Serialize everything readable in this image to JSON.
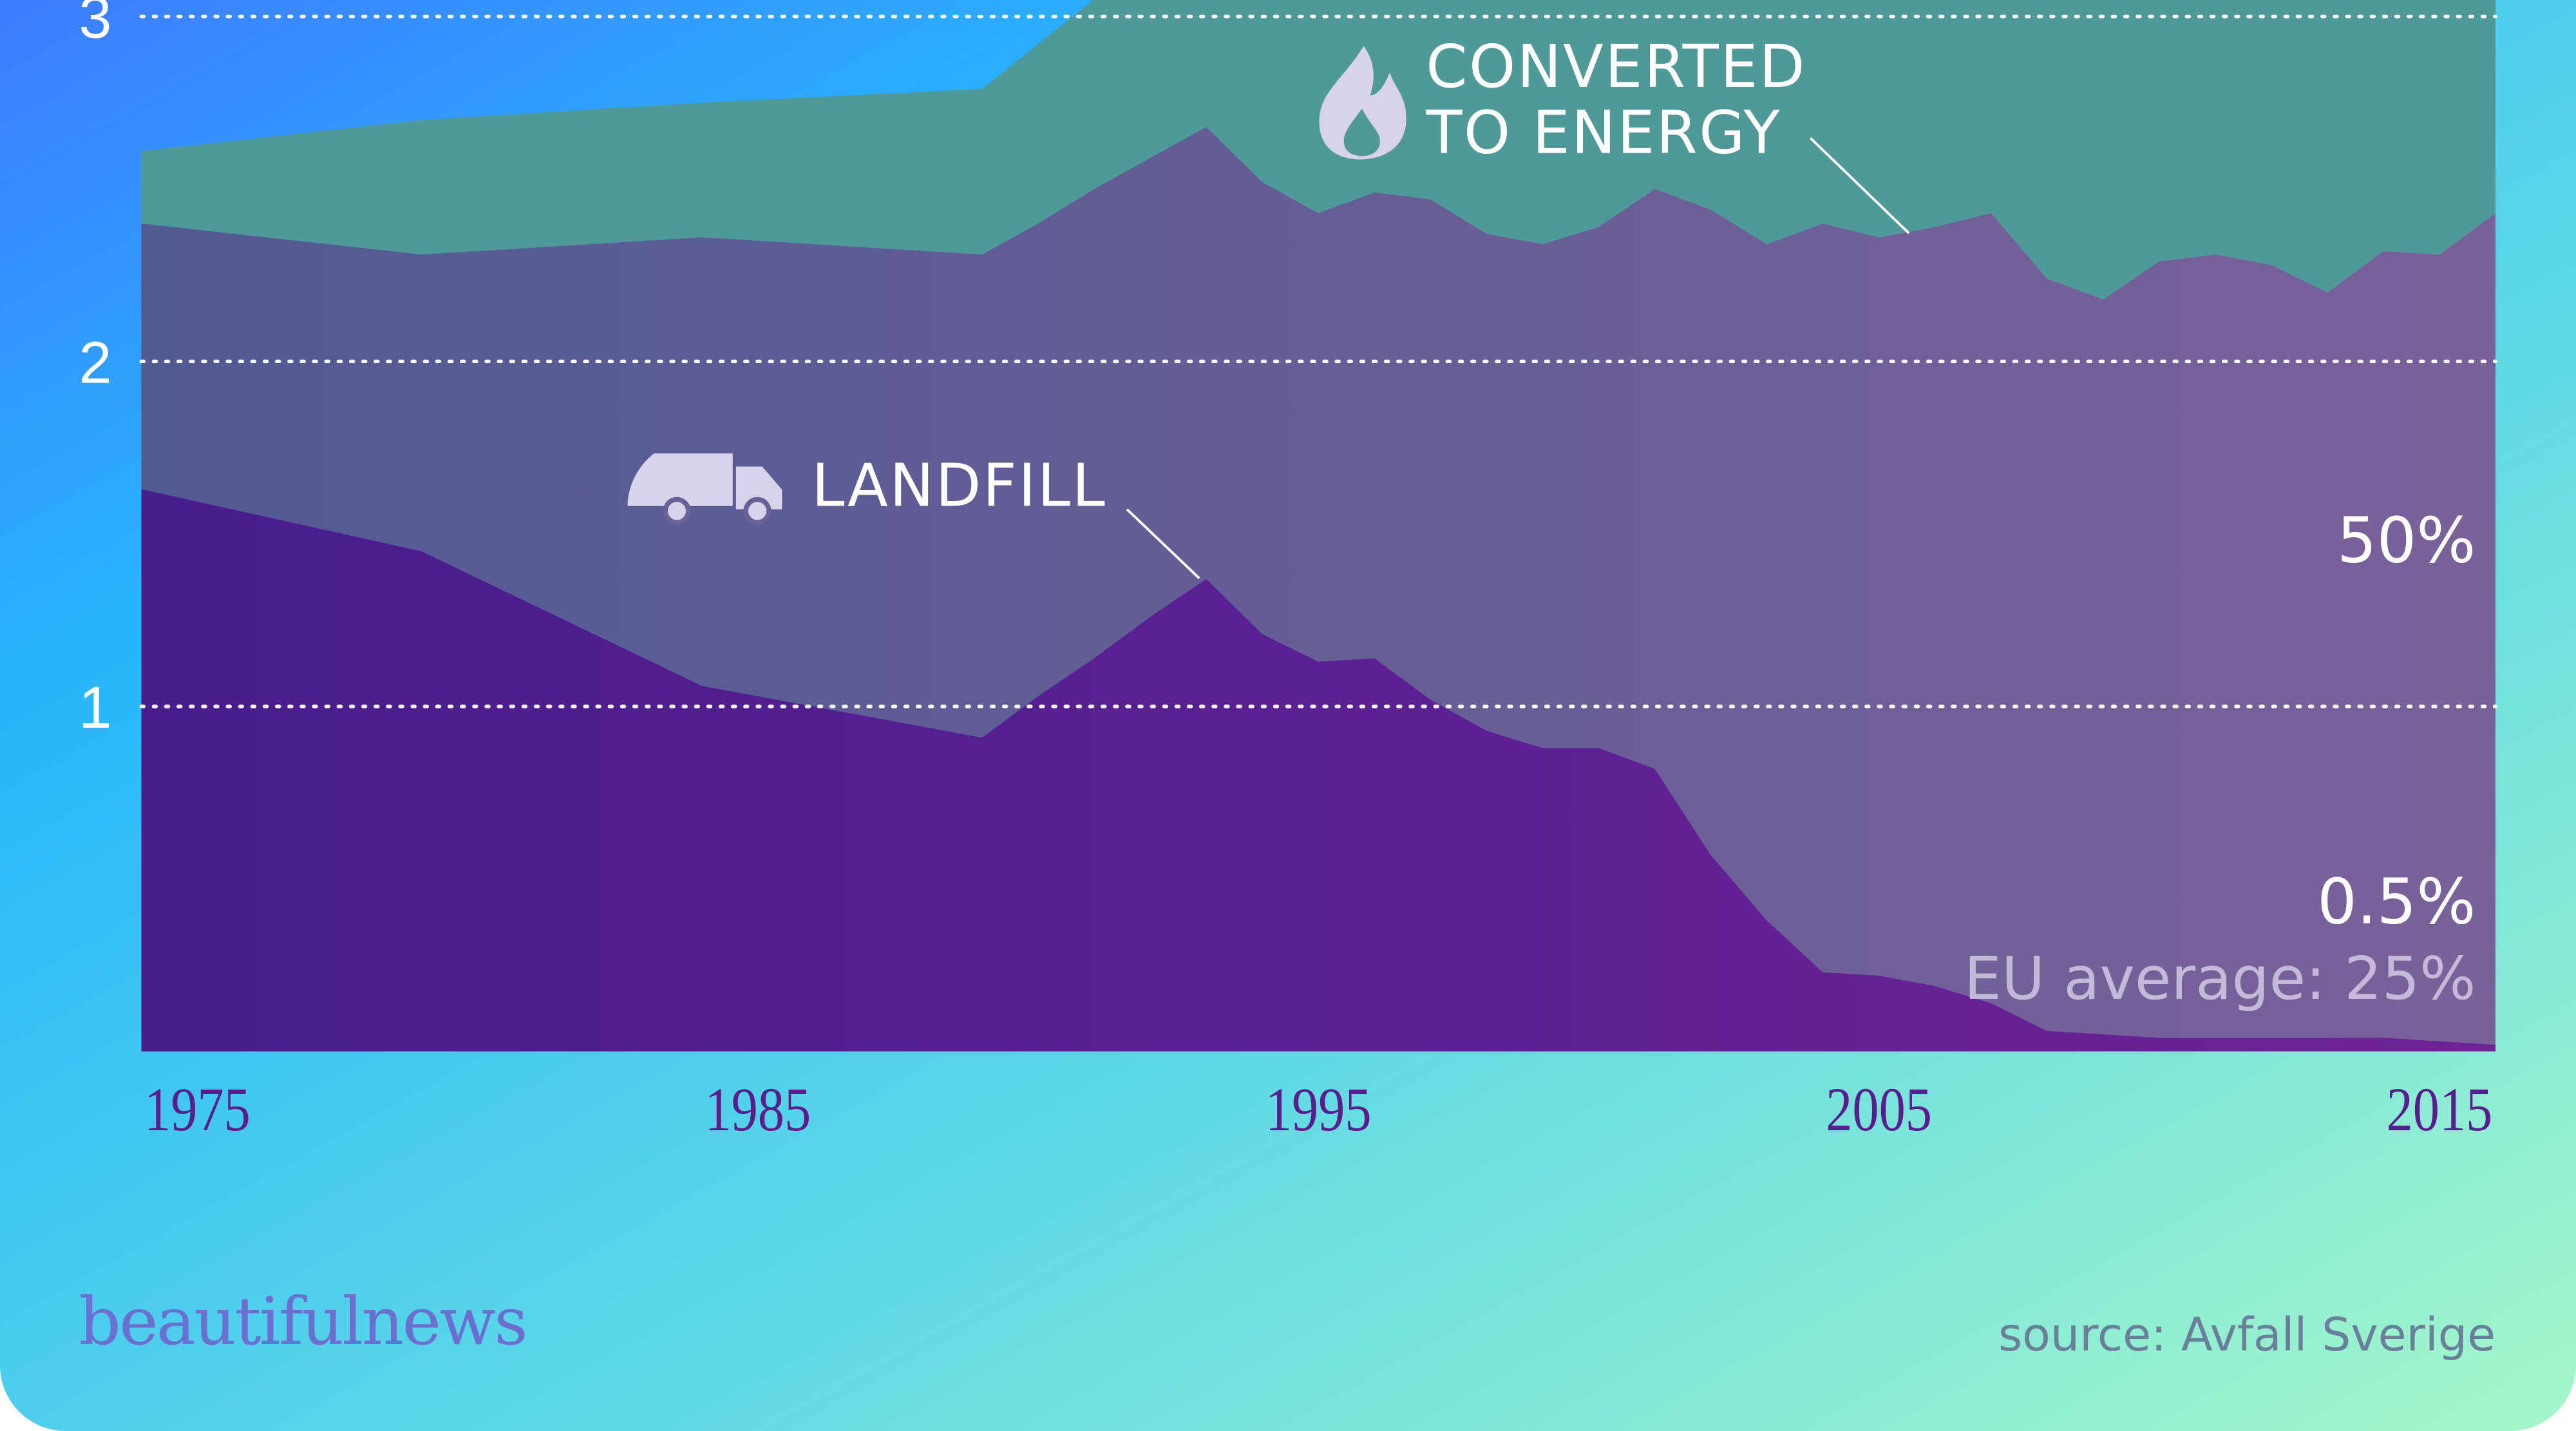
{
  "chart_data": {
    "type": "stacked-area",
    "x": [
      1974,
      1979,
      1984,
      1989,
      1990,
      1991,
      1992,
      1993,
      1994,
      1995,
      1996,
      1997,
      1998,
      1999,
      2000,
      2001,
      2002,
      2003,
      2004,
      2005,
      2006,
      2007,
      2008,
      2009,
      2010,
      2011,
      2012,
      2013,
      2014,
      2015,
      2016
    ],
    "series": [
      {
        "name": "LANDFILL",
        "color": "#521f8f",
        "values": [
          1.63,
          1.45,
          1.06,
          0.91,
          1.03,
          1.14,
          1.26,
          1.37,
          1.21,
          1.13,
          1.14,
          1.02,
          0.93,
          0.88,
          0.88,
          0.82,
          0.57,
          0.38,
          0.23,
          0.22,
          0.19,
          0.14,
          0.06,
          0.05,
          0.04,
          0.04,
          0.04,
          0.04,
          0.04,
          0.03,
          0.02
        ]
      },
      {
        "name": "CONVERTED TO ENERGY",
        "color": "#6a6297",
        "values": [
          0.77,
          0.86,
          1.3,
          1.4,
          1.37,
          1.36,
          1.33,
          1.31,
          1.31,
          1.3,
          1.35,
          1.45,
          1.44,
          1.46,
          1.51,
          1.68,
          1.87,
          1.96,
          2.17,
          2.14,
          2.2,
          2.29,
          2.18,
          2.13,
          2.25,
          2.27,
          2.24,
          2.16,
          2.28,
          2.28,
          2.41
        ]
      },
      {
        "color": "#4f9a98",
        "values": [
          0.21,
          0.39,
          0.39,
          0.48,
          0.52,
          0.55,
          0.71,
          0.62,
          0.78,
          0.87,
          0.81,
          0.83,
          0.93,
          0.96,
          0.91,
          0.8,
          0.86,
          0.96,
          0.9,
          0.94,
          0.91,
          0.87,
          1.06,
          1.12,
          1.01,
          0.99,
          1.02,
          1.1,
          0.98,
          0.99,
          0.87
        ]
      }
    ],
    "xlim": [
      1974,
      2016
    ],
    "xticks": [
      1975,
      1985,
      1995,
      2005,
      2015
    ],
    "ylim": [
      0,
      3
    ],
    "yticks": [
      1,
      2,
      3
    ],
    "grid": true,
    "annotations": [
      "50%",
      "0.5%",
      "EU average: 25%"
    ],
    "brand": "beautifulnews",
    "source": "source: Avfall Sverige"
  }
}
